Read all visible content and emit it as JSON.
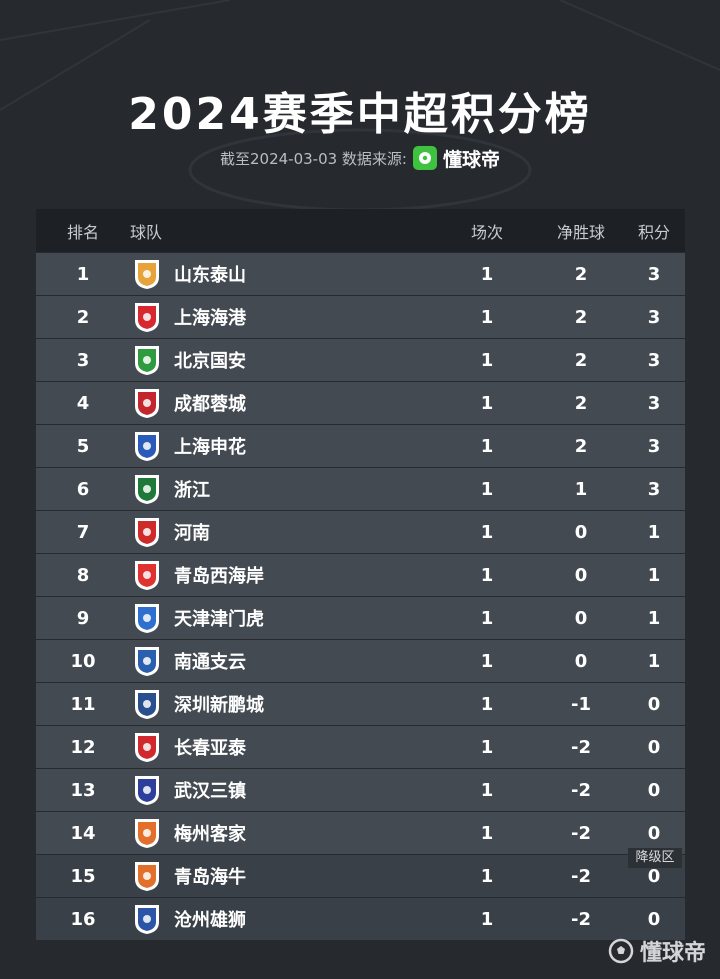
{
  "title": "2024赛季中超积分榜",
  "subtitle": {
    "text": "截至2024-03-03 数据来源:",
    "brand": "懂球帝"
  },
  "columns": {
    "rank": "排名",
    "team": "球队",
    "played": "场次",
    "goal_diff": "净胜球",
    "points": "积分"
  },
  "rows": [
    {
      "rank": "1",
      "team": "山东泰山",
      "played": "1",
      "gd": "2",
      "pts": "3",
      "crest_color": "#e8a23a"
    },
    {
      "rank": "2",
      "team": "上海海港",
      "played": "1",
      "gd": "2",
      "pts": "3",
      "crest_color": "#d8282f"
    },
    {
      "rank": "3",
      "team": "北京国安",
      "played": "1",
      "gd": "2",
      "pts": "3",
      "crest_color": "#2e9b3e"
    },
    {
      "rank": "4",
      "team": "成都蓉城",
      "played": "1",
      "gd": "2",
      "pts": "3",
      "crest_color": "#c3262c"
    },
    {
      "rank": "5",
      "team": "上海申花",
      "played": "1",
      "gd": "2",
      "pts": "3",
      "crest_color": "#2a5bb8"
    },
    {
      "rank": "6",
      "team": "浙江",
      "played": "1",
      "gd": "1",
      "pts": "3",
      "crest_color": "#1f7a3a"
    },
    {
      "rank": "7",
      "team": "河南",
      "played": "1",
      "gd": "0",
      "pts": "1",
      "crest_color": "#cf2a2a"
    },
    {
      "rank": "8",
      "team": "青岛西海岸",
      "played": "1",
      "gd": "0",
      "pts": "1",
      "crest_color": "#e0332f"
    },
    {
      "rank": "9",
      "team": "天津津门虎",
      "played": "1",
      "gd": "0",
      "pts": "1",
      "crest_color": "#2f6fd0"
    },
    {
      "rank": "10",
      "team": "南通支云",
      "played": "1",
      "gd": "0",
      "pts": "1",
      "crest_color": "#2a5fb0"
    },
    {
      "rank": "11",
      "team": "深圳新鹏城",
      "played": "1",
      "gd": "-1",
      "pts": "0",
      "crest_color": "#2a4f8f"
    },
    {
      "rank": "12",
      "team": "长春亚泰",
      "played": "1",
      "gd": "-2",
      "pts": "0",
      "crest_color": "#d0282c"
    },
    {
      "rank": "13",
      "team": "武汉三镇",
      "played": "1",
      "gd": "-2",
      "pts": "0",
      "crest_color": "#2c3f9a"
    },
    {
      "rank": "14",
      "team": "梅州客家",
      "played": "1",
      "gd": "-2",
      "pts": "0",
      "crest_color": "#e2702a"
    },
    {
      "rank": "15",
      "team": "青岛海牛",
      "played": "1",
      "gd": "-2",
      "pts": "0",
      "crest_color": "#e2702a"
    },
    {
      "rank": "16",
      "team": "沧州雄狮",
      "played": "1",
      "gd": "-2",
      "pts": "0",
      "crest_color": "#2b56a8"
    }
  ],
  "relegation_label": "降级区",
  "watermark": "懂球帝"
}
